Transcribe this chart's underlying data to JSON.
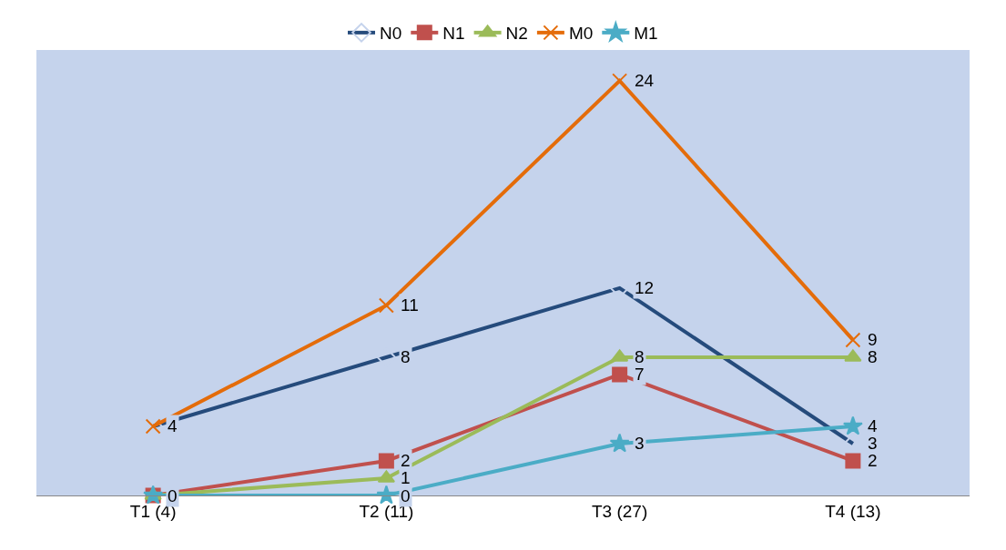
{
  "chart_data": {
    "type": "line",
    "categories": [
      "T1 (4)",
      "T2 (11)",
      "T3 (27)",
      "T4 (13)"
    ],
    "grid": false,
    "legend": "top",
    "tick_labels": "x",
    "series": [
      {
        "name": "N0",
        "color": "#254b7c",
        "marker": "diamond",
        "values": [
          4,
          8,
          12,
          3
        ],
        "value_labels": [
          "4",
          "8",
          "12",
          "3"
        ]
      },
      {
        "name": "N1",
        "color": "#c0504d",
        "marker": "square",
        "values": [
          0,
          2,
          7,
          2
        ],
        "value_labels": [
          "0",
          "2",
          "7",
          "2"
        ]
      },
      {
        "name": "N2",
        "color": "#9bbb59",
        "marker": "triangle",
        "values": [
          0,
          1,
          8,
          8
        ],
        "value_labels": [
          null,
          "1",
          "8",
          "8"
        ]
      },
      {
        "name": "M0",
        "color": "#e46c0a",
        "marker": "cross",
        "values": [
          4,
          11,
          24,
          9
        ],
        "value_labels": [
          null,
          "11",
          "24",
          "9"
        ]
      },
      {
        "name": "M1",
        "color": "#4bacc6",
        "marker": "star",
        "values": [
          0,
          0,
          3,
          4
        ],
        "value_labels": [
          null,
          "0",
          "3",
          "4"
        ]
      }
    ]
  }
}
